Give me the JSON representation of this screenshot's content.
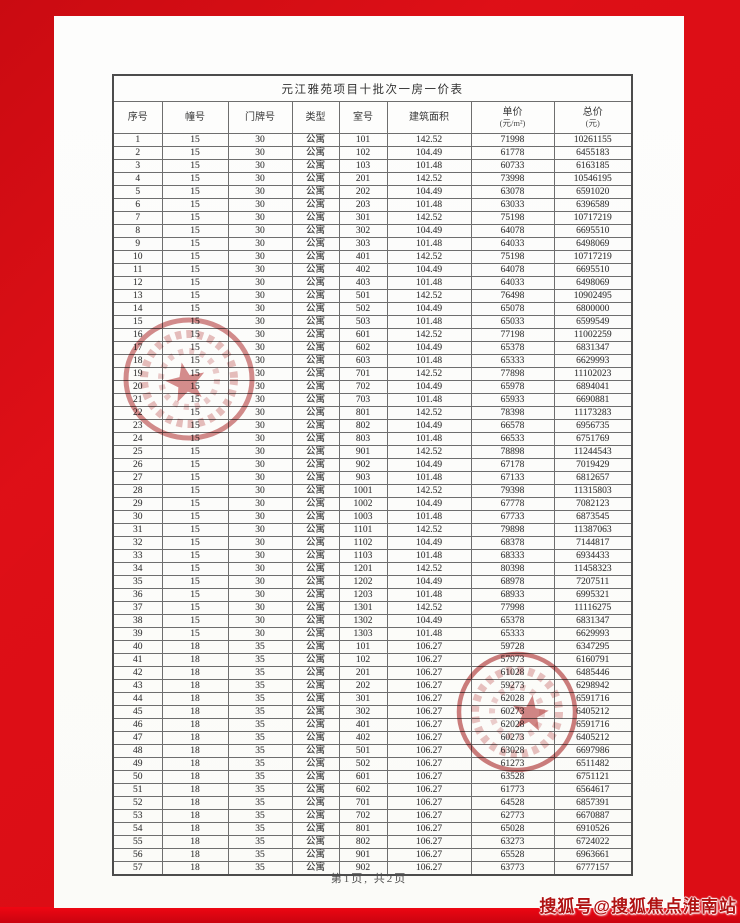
{
  "page": {
    "footer": "第1页, 共2页"
  },
  "watermark": "搜狐号@搜狐焦点淮南站",
  "colors": {
    "background_red": "#dc0d15",
    "bottom_strip_red": "#ef0612",
    "stamp_red": "#b94646",
    "watermark_red": "#b01212",
    "page_white": "#fdfdfc"
  },
  "table": {
    "title": "元江雅苑项目十批次一房一价表",
    "columns": [
      {
        "label": "序号"
      },
      {
        "label": "幢号"
      },
      {
        "label": "门牌号"
      },
      {
        "label": "类型"
      },
      {
        "label": "室号"
      },
      {
        "label": "建筑面积"
      },
      {
        "label": "单价",
        "sub": "(元/m²)"
      },
      {
        "label": "总价",
        "sub": "(元)"
      }
    ],
    "rows": [
      [
        1,
        15,
        30,
        "公寓",
        101,
        142.52,
        71998,
        10261155
      ],
      [
        2,
        15,
        30,
        "公寓",
        102,
        104.49,
        61778,
        6455183
      ],
      [
        3,
        15,
        30,
        "公寓",
        103,
        101.48,
        60733,
        6163185
      ],
      [
        4,
        15,
        30,
        "公寓",
        201,
        142.52,
        73998,
        10546195
      ],
      [
        5,
        15,
        30,
        "公寓",
        202,
        104.49,
        63078,
        6591020
      ],
      [
        6,
        15,
        30,
        "公寓",
        203,
        101.48,
        63033,
        6396589
      ],
      [
        7,
        15,
        30,
        "公寓",
        301,
        142.52,
        75198,
        10717219
      ],
      [
        8,
        15,
        30,
        "公寓",
        302,
        104.49,
        64078,
        6695510
      ],
      [
        9,
        15,
        30,
        "公寓",
        303,
        101.48,
        64033,
        6498069
      ],
      [
        10,
        15,
        30,
        "公寓",
        401,
        142.52,
        75198,
        10717219
      ],
      [
        11,
        15,
        30,
        "公寓",
        402,
        104.49,
        64078,
        6695510
      ],
      [
        12,
        15,
        30,
        "公寓",
        403,
        101.48,
        64033,
        6498069
      ],
      [
        13,
        15,
        30,
        "公寓",
        501,
        142.52,
        76498,
        10902495
      ],
      [
        14,
        15,
        30,
        "公寓",
        502,
        104.49,
        65078,
        6800000
      ],
      [
        15,
        15,
        30,
        "公寓",
        503,
        101.48,
        65033,
        6599549
      ],
      [
        16,
        15,
        30,
        "公寓",
        601,
        142.52,
        77198,
        11002259
      ],
      [
        17,
        15,
        30,
        "公寓",
        602,
        104.49,
        65378,
        6831347
      ],
      [
        18,
        15,
        30,
        "公寓",
        603,
        101.48,
        65333,
        6629993
      ],
      [
        19,
        15,
        30,
        "公寓",
        701,
        142.52,
        77898,
        11102023
      ],
      [
        20,
        15,
        30,
        "公寓",
        702,
        104.49,
        65978,
        6894041
      ],
      [
        21,
        15,
        30,
        "公寓",
        703,
        101.48,
        65933,
        6690881
      ],
      [
        22,
        15,
        30,
        "公寓",
        801,
        142.52,
        78398,
        11173283
      ],
      [
        23,
        15,
        30,
        "公寓",
        802,
        104.49,
        66578,
        6956735
      ],
      [
        24,
        15,
        30,
        "公寓",
        803,
        101.48,
        66533,
        6751769
      ],
      [
        25,
        15,
        30,
        "公寓",
        901,
        142.52,
        78898,
        11244543
      ],
      [
        26,
        15,
        30,
        "公寓",
        902,
        104.49,
        67178,
        7019429
      ],
      [
        27,
        15,
        30,
        "公寓",
        903,
        101.48,
        67133,
        6812657
      ],
      [
        28,
        15,
        30,
        "公寓",
        1001,
        142.52,
        79398,
        11315803
      ],
      [
        29,
        15,
        30,
        "公寓",
        1002,
        104.49,
        67778,
        7082123
      ],
      [
        30,
        15,
        30,
        "公寓",
        1003,
        101.48,
        67733,
        6873545
      ],
      [
        31,
        15,
        30,
        "公寓",
        1101,
        142.52,
        79898,
        11387063
      ],
      [
        32,
        15,
        30,
        "公寓",
        1102,
        104.49,
        68378,
        7144817
      ],
      [
        33,
        15,
        30,
        "公寓",
        1103,
        101.48,
        68333,
        6934433
      ],
      [
        34,
        15,
        30,
        "公寓",
        1201,
        142.52,
        80398,
        11458323
      ],
      [
        35,
        15,
        30,
        "公寓",
        1202,
        104.49,
        68978,
        7207511
      ],
      [
        36,
        15,
        30,
        "公寓",
        1203,
        101.48,
        68933,
        6995321
      ],
      [
        37,
        15,
        30,
        "公寓",
        1301,
        142.52,
        77998,
        11116275
      ],
      [
        38,
        15,
        30,
        "公寓",
        1302,
        104.49,
        65378,
        6831347
      ],
      [
        39,
        15,
        30,
        "公寓",
        1303,
        101.48,
        65333,
        6629993
      ],
      [
        40,
        18,
        35,
        "公寓",
        101,
        106.27,
        59728,
        6347295
      ],
      [
        41,
        18,
        35,
        "公寓",
        102,
        106.27,
        57973,
        6160791
      ],
      [
        42,
        18,
        35,
        "公寓",
        201,
        106.27,
        61028,
        6485446
      ],
      [
        43,
        18,
        35,
        "公寓",
        202,
        106.27,
        59273,
        6298942
      ],
      [
        44,
        18,
        35,
        "公寓",
        301,
        106.27,
        62028,
        6591716
      ],
      [
        45,
        18,
        35,
        "公寓",
        302,
        106.27,
        60273,
        6405212
      ],
      [
        46,
        18,
        35,
        "公寓",
        401,
        106.27,
        62028,
        6591716
      ],
      [
        47,
        18,
        35,
        "公寓",
        402,
        106.27,
        60273,
        6405212
      ],
      [
        48,
        18,
        35,
        "公寓",
        501,
        106.27,
        63028,
        6697986
      ],
      [
        49,
        18,
        35,
        "公寓",
        502,
        106.27,
        61273,
        6511482
      ],
      [
        50,
        18,
        35,
        "公寓",
        601,
        106.27,
        63528,
        6751121
      ],
      [
        51,
        18,
        35,
        "公寓",
        602,
        106.27,
        61773,
        6564617
      ],
      [
        52,
        18,
        35,
        "公寓",
        701,
        106.27,
        64528,
        6857391
      ],
      [
        53,
        18,
        35,
        "公寓",
        702,
        106.27,
        62773,
        6670887
      ],
      [
        54,
        18,
        35,
        "公寓",
        801,
        106.27,
        65028,
        6910526
      ],
      [
        55,
        18,
        35,
        "公寓",
        802,
        106.27,
        63273,
        6724022
      ],
      [
        56,
        18,
        35,
        "公寓",
        901,
        106.27,
        65528,
        6963661
      ],
      [
        57,
        18,
        35,
        "公寓",
        902,
        106.27,
        63773,
        6777157
      ]
    ]
  },
  "stamps": [
    {
      "name": "red-seal-stamp-1"
    },
    {
      "name": "red-seal-stamp-2"
    }
  ]
}
